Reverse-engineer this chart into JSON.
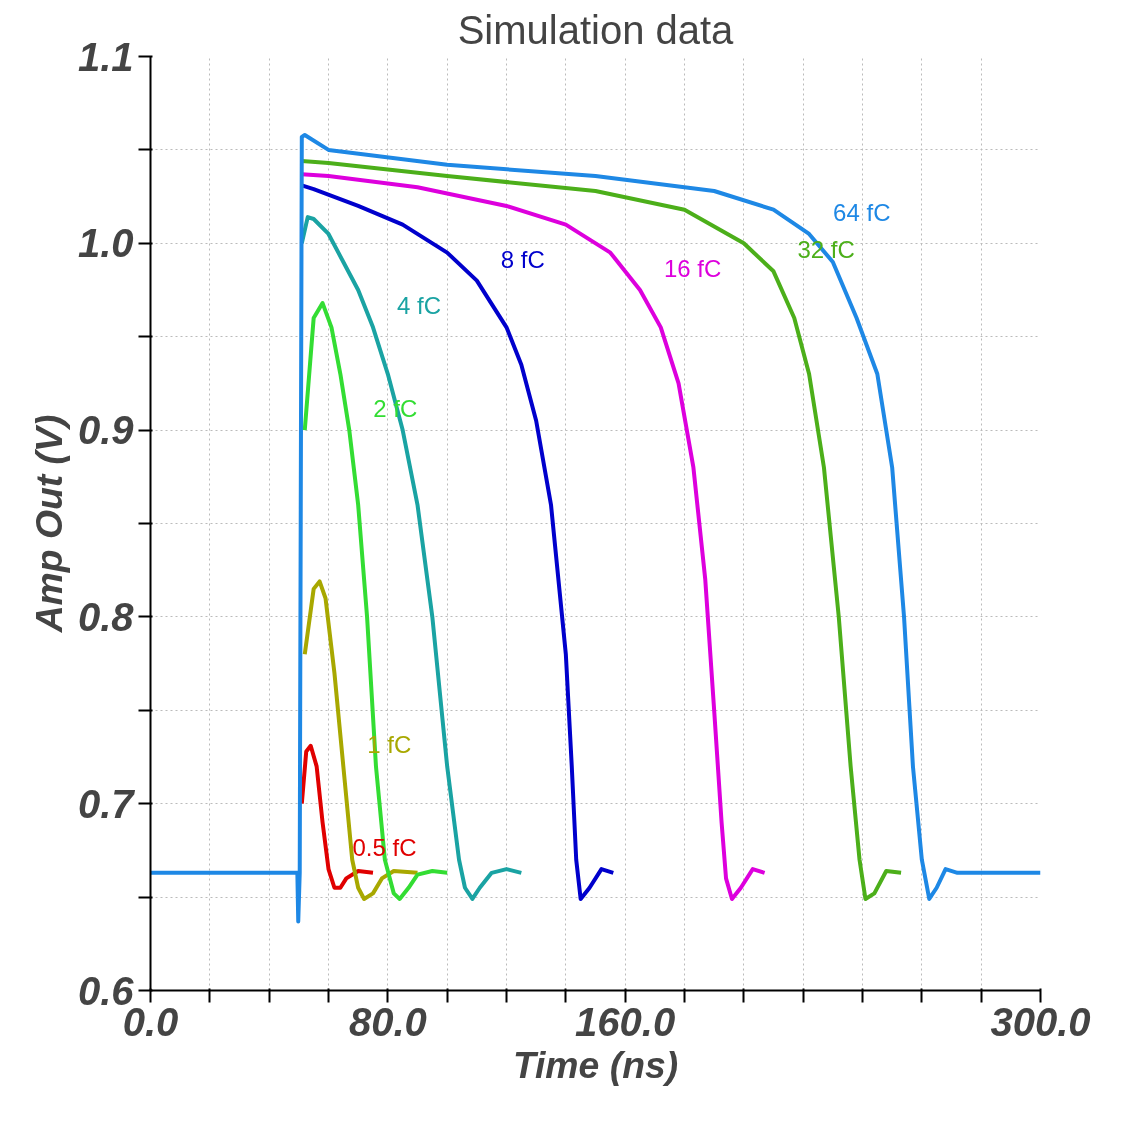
{
  "chart_data": {
    "type": "line",
    "title": "Simulation data",
    "xlabel": "Time (ns)",
    "ylabel": "Amp Out (V)",
    "xlim": [
      0,
      300
    ],
    "ylim": [
      0.6,
      1.1
    ],
    "xticks": [
      {
        "value": 0,
        "label": "0.0"
      },
      {
        "value": 20,
        "label": null
      },
      {
        "value": 40,
        "label": null
      },
      {
        "value": 60,
        "label": null
      },
      {
        "value": 80,
        "label": "80.0"
      },
      {
        "value": 100,
        "label": null
      },
      {
        "value": 120,
        "label": null
      },
      {
        "value": 140,
        "label": null
      },
      {
        "value": 160,
        "label": "160.0"
      },
      {
        "value": 180,
        "label": null
      },
      {
        "value": 200,
        "label": null
      },
      {
        "value": 220,
        "label": null
      },
      {
        "value": 240,
        "label": null
      },
      {
        "value": 260,
        "label": null
      },
      {
        "value": 280,
        "label": null
      },
      {
        "value": 300,
        "label": "300.0"
      }
    ],
    "yticks": [
      {
        "value": 0.6,
        "label": "0.6"
      },
      {
        "value": 0.65,
        "label": null
      },
      {
        "value": 0.7,
        "label": "0.7"
      },
      {
        "value": 0.75,
        "label": null
      },
      {
        "value": 0.8,
        "label": "0.8"
      },
      {
        "value": 0.85,
        "label": null
      },
      {
        "value": 0.9,
        "label": "0.9"
      },
      {
        "value": 0.95,
        "label": null
      },
      {
        "value": 1.0,
        "label": "1.0"
      },
      {
        "value": 1.05,
        "label": null
      },
      {
        "value": 1.1,
        "label": "1.1"
      }
    ],
    "grid": true,
    "marker": "none",
    "line_style": "solid",
    "series": [
      {
        "name": "0.5 fC",
        "color": "#e00000",
        "x": [
          51,
          52.5,
          54,
          56,
          58,
          60,
          62,
          64,
          66,
          70,
          75
        ],
        "values": [
          0.7,
          0.728,
          0.731,
          0.72,
          0.69,
          0.665,
          0.655,
          0.655,
          0.66,
          0.664,
          0.663
        ]
      },
      {
        "name": "1 fC",
        "color": "#a8a800",
        "x": [
          52,
          55,
          57,
          59,
          62,
          65,
          68,
          70,
          72,
          75,
          78,
          82,
          90
        ],
        "values": [
          0.78,
          0.815,
          0.819,
          0.81,
          0.77,
          0.72,
          0.67,
          0.655,
          0.649,
          0.652,
          0.66,
          0.664,
          0.663
        ]
      },
      {
        "name": "2 fC",
        "color": "#33dd33",
        "x": [
          52,
          55,
          58,
          61,
          64,
          67,
          70,
          73,
          76,
          79,
          82,
          84,
          87,
          90,
          95,
          100
        ],
        "values": [
          0.9,
          0.96,
          0.968,
          0.955,
          0.93,
          0.9,
          0.86,
          0.8,
          0.72,
          0.67,
          0.652,
          0.649,
          0.655,
          0.662,
          0.664,
          0.663
        ]
      },
      {
        "name": "4 fC",
        "color": "#1aa3a3",
        "x": [
          51,
          53,
          55,
          60,
          65,
          70,
          75,
          80,
          85,
          90,
          95,
          100,
          104,
          106,
          108.5,
          111,
          115,
          120,
          125
        ],
        "values": [
          1.0,
          1.014,
          1.013,
          1.005,
          0.99,
          0.975,
          0.955,
          0.93,
          0.9,
          0.86,
          0.8,
          0.72,
          0.67,
          0.655,
          0.649,
          0.655,
          0.663,
          0.665,
          0.663
        ]
      },
      {
        "name": "8 fC",
        "color": "#0000cc",
        "x": [
          51,
          55,
          70,
          85,
          100,
          110,
          120,
          125,
          130,
          135,
          140,
          142,
          143.5,
          145,
          148,
          152,
          156
        ],
        "values": [
          1.031,
          1.029,
          1.02,
          1.01,
          0.995,
          0.98,
          0.955,
          0.935,
          0.905,
          0.86,
          0.78,
          0.72,
          0.67,
          0.649,
          0.655,
          0.665,
          0.663
        ]
      },
      {
        "name": "16 fC",
        "color": "#dd00dd",
        "x": [
          51,
          60,
          90,
          120,
          140,
          155,
          165,
          172,
          178,
          183,
          187,
          190,
          192.5,
          194,
          196,
          199,
          203,
          207
        ],
        "values": [
          1.037,
          1.036,
          1.03,
          1.02,
          1.01,
          0.995,
          0.975,
          0.955,
          0.925,
          0.88,
          0.82,
          0.75,
          0.69,
          0.66,
          0.649,
          0.655,
          0.665,
          0.663
        ]
      },
      {
        "name": "32 fC",
        "color": "#4caf1a",
        "x": [
          51,
          60,
          100,
          150,
          180,
          200,
          210,
          217,
          222,
          227,
          232,
          236,
          239,
          241,
          244,
          248,
          253
        ],
        "values": [
          1.044,
          1.043,
          1.036,
          1.028,
          1.018,
          1.0,
          0.985,
          0.96,
          0.93,
          0.88,
          0.8,
          0.72,
          0.67,
          0.649,
          0.652,
          0.664,
          0.663
        ]
      },
      {
        "name": "64 fC",
        "color": "#1e88e5",
        "x": [
          0,
          49.5,
          49.8,
          50.3,
          51,
          52,
          60,
          100,
          150,
          190,
          210,
          222,
          230,
          238,
          245,
          250,
          254,
          257,
          260,
          262.5,
          265,
          268,
          272,
          300
        ],
        "values": [
          0.663,
          0.663,
          0.637,
          0.663,
          1.057,
          1.058,
          1.05,
          1.042,
          1.036,
          1.028,
          1.018,
          1.005,
          0.99,
          0.96,
          0.93,
          0.88,
          0.8,
          0.72,
          0.67,
          0.649,
          0.655,
          0.665,
          0.663,
          0.663
        ]
      }
    ]
  }
}
